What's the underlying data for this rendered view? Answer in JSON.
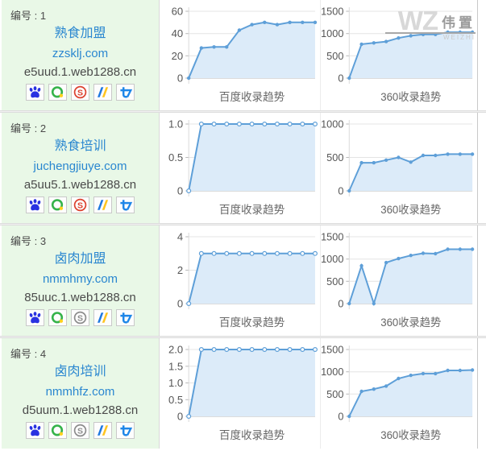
{
  "watermark": {
    "big": "WZ",
    "cn": "伟置",
    "small": "WEIZHI"
  },
  "colors": {
    "line_blue": "#5e9fd8",
    "area_fill": "#dcebf9",
    "panel_green": "#e9f8e7",
    "link_blue": "#2a87d0",
    "sogou_red": "#dc402e",
    "sogou_gray": "#8c8c8c"
  },
  "rows": [
    {
      "num_label": "编号 : 1",
      "title": "熟食加盟",
      "domain": "zzsklj.com",
      "subdomain": "e5uud.1.web1288.cn",
      "sogou_color": "#dc402e",
      "icon_names": [
        "baidu-icon",
        "so360-icon",
        "sogou-icon",
        "shenma-icon",
        "toutiao-icon"
      ]
    },
    {
      "num_label": "编号 : 2",
      "title": "熟食培训",
      "domain": "juchengjiuye.com",
      "subdomain": "a5uu5.1.web1288.cn",
      "sogou_color": "#dc402e",
      "icon_names": [
        "baidu-icon",
        "so360-icon",
        "sogou-icon",
        "shenma-icon",
        "toutiao-icon"
      ]
    },
    {
      "num_label": "编号 : 3",
      "title": "卤肉加盟",
      "domain": "nmmhmy.com",
      "subdomain": "85uuc.1.web1288.cn",
      "sogou_color": "#8c8c8c",
      "icon_names": [
        "baidu-icon",
        "so360-icon",
        "sogou-icon",
        "shenma-icon",
        "toutiao-icon"
      ]
    },
    {
      "num_label": "编号 : 4",
      "title": "卤肉培训",
      "domain": "nmmhfz.com",
      "subdomain": "d5uum.1.web1288.cn",
      "sogou_color": "#8c8c8c",
      "icon_names": [
        "baidu-icon",
        "so360-icon",
        "sogou-icon",
        "shenma-icon",
        "toutiao-icon"
      ]
    }
  ],
  "chart_data": [
    {
      "type": "area",
      "row": 1,
      "title": "百度收录趋势",
      "ylim": [
        0,
        60
      ],
      "yticks": [
        0,
        20,
        40,
        60
      ],
      "ytick_labels": [
        "0",
        "20",
        "40",
        "60"
      ],
      "values": [
        0,
        27,
        28,
        28,
        43,
        48,
        50,
        48,
        50,
        50,
        50
      ],
      "marker": "filled",
      "grid": true,
      "legend": "none"
    },
    {
      "type": "area",
      "row": 1,
      "title": "360收录趋势",
      "ylim": [
        0,
        1500
      ],
      "yticks": [
        0,
        500,
        1000,
        1500
      ],
      "ytick_labels": [
        "0",
        "500",
        "1000",
        "1500"
      ],
      "values": [
        0,
        760,
        790,
        820,
        900,
        950,
        980,
        980,
        1030,
        1030,
        1030
      ],
      "marker": "filled",
      "grid": true,
      "legend": "none"
    },
    {
      "type": "area",
      "row": 2,
      "title": "百度收录趋势",
      "ylim": [
        0,
        1
      ],
      "yticks": [
        0,
        0.5,
        1
      ],
      "ytick_labels": [
        "0",
        "0.5",
        "1.0"
      ],
      "values": [
        0,
        1,
        1,
        1,
        1,
        1,
        1,
        1,
        1,
        1,
        1
      ],
      "marker": "hollow",
      "grid": true,
      "legend": "none"
    },
    {
      "type": "area",
      "row": 2,
      "title": "360收录趋势",
      "ylim": [
        0,
        1000
      ],
      "yticks": [
        0,
        500,
        1000
      ],
      "ytick_labels": [
        "0",
        "500",
        "1000"
      ],
      "values": [
        0,
        420,
        420,
        460,
        500,
        430,
        530,
        530,
        550,
        550,
        550
      ],
      "marker": "filled",
      "grid": true,
      "legend": "none"
    },
    {
      "type": "area",
      "row": 3,
      "title": "百度收录趋势",
      "ylim": [
        0,
        4
      ],
      "yticks": [
        0,
        2,
        4
      ],
      "ytick_labels": [
        "0",
        "2",
        "4"
      ],
      "values": [
        0,
        3,
        3,
        3,
        3,
        3,
        3,
        3,
        3,
        3,
        3
      ],
      "marker": "hollow",
      "grid": true,
      "legend": "none"
    },
    {
      "type": "area",
      "row": 3,
      "title": "360收录趋势",
      "ylim": [
        0,
        1500
      ],
      "yticks": [
        0,
        500,
        1000,
        1500
      ],
      "ytick_labels": [
        "0",
        "500",
        "1000",
        "1500"
      ],
      "values": [
        0,
        850,
        0,
        920,
        1010,
        1080,
        1130,
        1120,
        1220,
        1220,
        1220
      ],
      "marker": "filled",
      "grid": true,
      "legend": "none"
    },
    {
      "type": "area",
      "row": 4,
      "title": "百度收录趋势",
      "ylim": [
        0,
        2
      ],
      "yticks": [
        0,
        0.5,
        1,
        1.5,
        2
      ],
      "ytick_labels": [
        "0",
        "0.5",
        "1.0",
        "1.5",
        "2.0"
      ],
      "values": [
        0,
        2,
        2,
        2,
        2,
        2,
        2,
        2,
        2,
        2,
        2
      ],
      "marker": "hollow",
      "grid": true,
      "legend": "none"
    },
    {
      "type": "area",
      "row": 4,
      "title": "360收录趋势",
      "ylim": [
        0,
        1500
      ],
      "yticks": [
        0,
        500,
        1000,
        1500
      ],
      "ytick_labels": [
        "0",
        "500",
        "1000",
        "1500"
      ],
      "values": [
        0,
        560,
        610,
        680,
        850,
        920,
        960,
        960,
        1030,
        1030,
        1040
      ],
      "marker": "filled",
      "grid": true,
      "legend": "none"
    }
  ]
}
